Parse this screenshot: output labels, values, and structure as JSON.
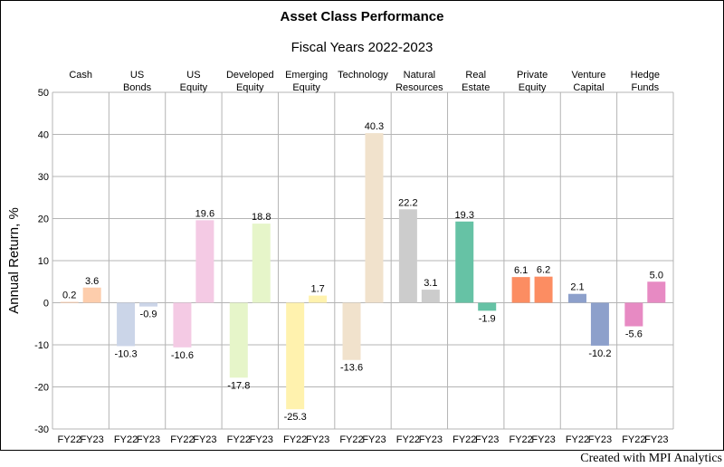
{
  "chart_data": {
    "type": "bar",
    "title": "Asset Class Performance",
    "subtitle": "Fiscal Years 2022-2023",
    "ylabel": "Annual Return, %",
    "ylim": [
      -30,
      50
    ],
    "yticks": [
      -30,
      -20,
      -10,
      0,
      10,
      20,
      30,
      40,
      50
    ],
    "grid": true,
    "bar_categories": [
      "FY22",
      "FY23"
    ],
    "groups": [
      {
        "label": [
          "Cash"
        ],
        "values": [
          0.2,
          3.6
        ],
        "color": "#fdcdac"
      },
      {
        "label": [
          "US",
          "Bonds"
        ],
        "values": [
          -10.3,
          -0.9
        ],
        "color": "#cbd5e8"
      },
      {
        "label": [
          "US",
          "Equity"
        ],
        "values": [
          -10.6,
          19.6
        ],
        "color": "#f4cae4"
      },
      {
        "label": [
          "Developed",
          "Equity"
        ],
        "values": [
          -17.8,
          18.8
        ],
        "color": "#e6f5c9"
      },
      {
        "label": [
          "Emerging",
          "Equity"
        ],
        "values": [
          -25.3,
          1.7
        ],
        "color": "#fff2ae"
      },
      {
        "label": [
          "Technology"
        ],
        "values": [
          -13.6,
          40.3
        ],
        "color": "#f1e2cc"
      },
      {
        "label": [
          "Natural",
          "Resources"
        ],
        "values": [
          22.2,
          3.1
        ],
        "color": "#cccccc"
      },
      {
        "label": [
          "Real",
          "Estate"
        ],
        "values": [
          19.3,
          -1.9
        ],
        "color": "#66c2a5"
      },
      {
        "label": [
          "Private",
          "Equity"
        ],
        "values": [
          6.1,
          6.2
        ],
        "color": "#fc8d62"
      },
      {
        "label": [
          "Venture",
          "Capital"
        ],
        "values": [
          2.1,
          -10.2
        ],
        "color": "#8da0cb"
      },
      {
        "label": [
          "Hedge",
          "Funds"
        ],
        "values": [
          -5.6,
          5.0
        ],
        "color": "#e78ac3"
      }
    ]
  },
  "credit": "Created with MPI Analytics"
}
